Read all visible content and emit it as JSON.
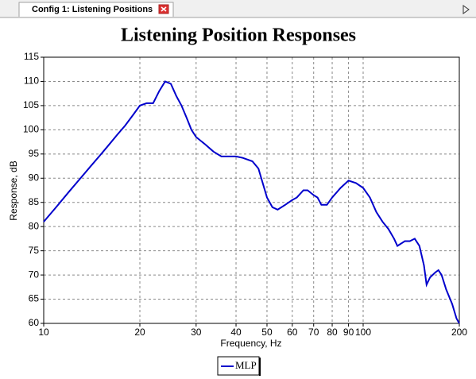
{
  "tab": {
    "label": "Config 1: Listening Positions"
  },
  "chart_data": {
    "type": "line",
    "title": "Listening Position Responses",
    "x_label": "Frequency, Hz",
    "y_label": "Response, dB",
    "x": [
      10,
      11,
      12,
      13,
      14,
      15,
      16,
      17,
      18,
      19,
      20,
      21,
      22,
      23,
      24,
      25,
      26,
      27,
      28,
      29,
      30,
      32,
      34,
      36,
      38,
      40,
      42,
      45,
      47,
      50,
      52,
      54,
      57,
      60,
      62,
      65,
      67,
      70,
      72,
      74,
      77,
      80,
      85,
      90,
      95,
      100,
      105,
      110,
      115,
      120,
      125,
      128,
      135,
      140,
      145,
      150,
      155,
      158,
      162,
      168,
      172,
      176,
      182,
      190,
      196,
      200
    ],
    "series": [
      {
        "name": "MLP",
        "color": "#0000cc",
        "values": [
          81,
          84.2,
          87.2,
          89.9,
          92.4,
          94.7,
          96.9,
          99,
          100.9,
          103,
          105,
          105.5,
          105.5,
          108,
          110,
          109.5,
          107,
          105,
          102.5,
          100,
          98.5,
          97,
          95.5,
          94.5,
          94.5,
          94.5,
          94.2,
          93.5,
          92,
          86,
          84,
          83.5,
          84.5,
          85.5,
          86,
          87.5,
          87.5,
          86.5,
          86,
          84.5,
          84.5,
          86,
          88,
          89.5,
          89,
          88,
          86,
          83,
          81,
          79.5,
          77.5,
          76,
          77,
          77,
          77.5,
          76,
          72,
          68,
          69.5,
          70.5,
          71,
          70,
          67,
          64,
          61,
          60
        ]
      }
    ],
    "xlim": [
      10,
      200
    ],
    "ylim": [
      60,
      115
    ],
    "xticks": [
      10,
      20,
      30,
      40,
      50,
      60,
      70,
      80,
      90,
      100,
      200
    ],
    "yticks": [
      60,
      65,
      70,
      75,
      80,
      85,
      90,
      95,
      100,
      105,
      110,
      115
    ],
    "log_x": true,
    "grid": true,
    "legend": "bottom"
  }
}
